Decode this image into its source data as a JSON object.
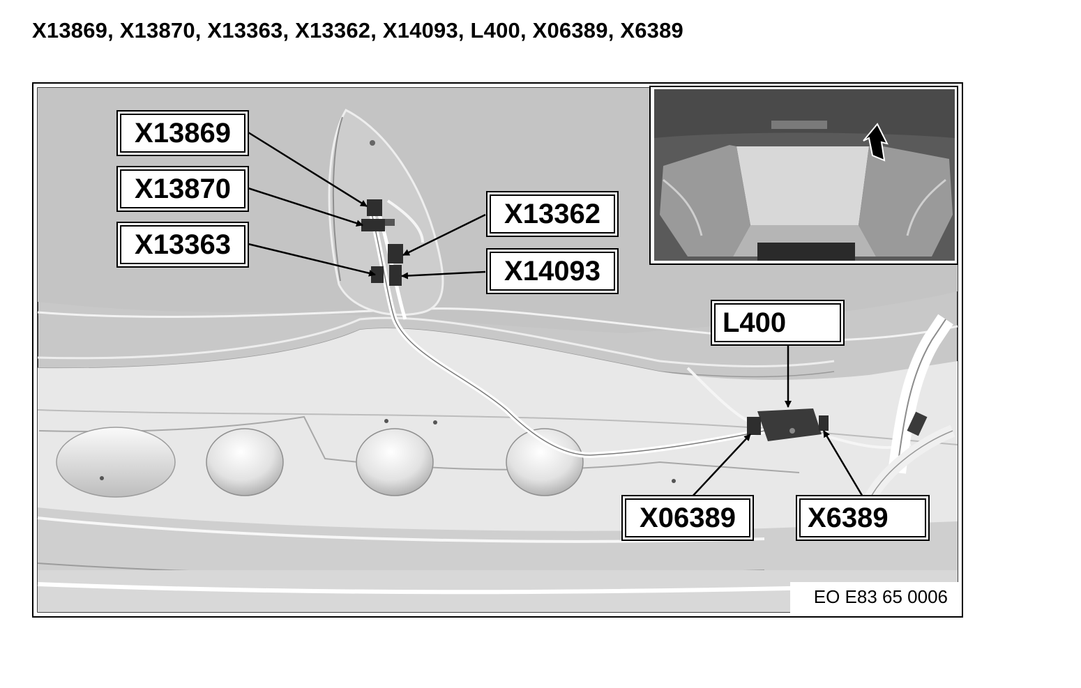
{
  "page_title": "X13869, X13870, X13363, X13362, X14093, L400, X06389, X6389",
  "callouts": {
    "x13869": "X13869",
    "x13870": "X13870",
    "x13363": "X13363",
    "x13362": "X13362",
    "x14093": "X14093",
    "l400": "L400",
    "x06389": "X06389",
    "x6389": "X6389"
  },
  "reference_code": "EO E83 65 0006",
  "colors": {
    "panel_gray": "#c9c9c9",
    "inset_dark": "#555555",
    "connector": "#2e2e2e"
  }
}
